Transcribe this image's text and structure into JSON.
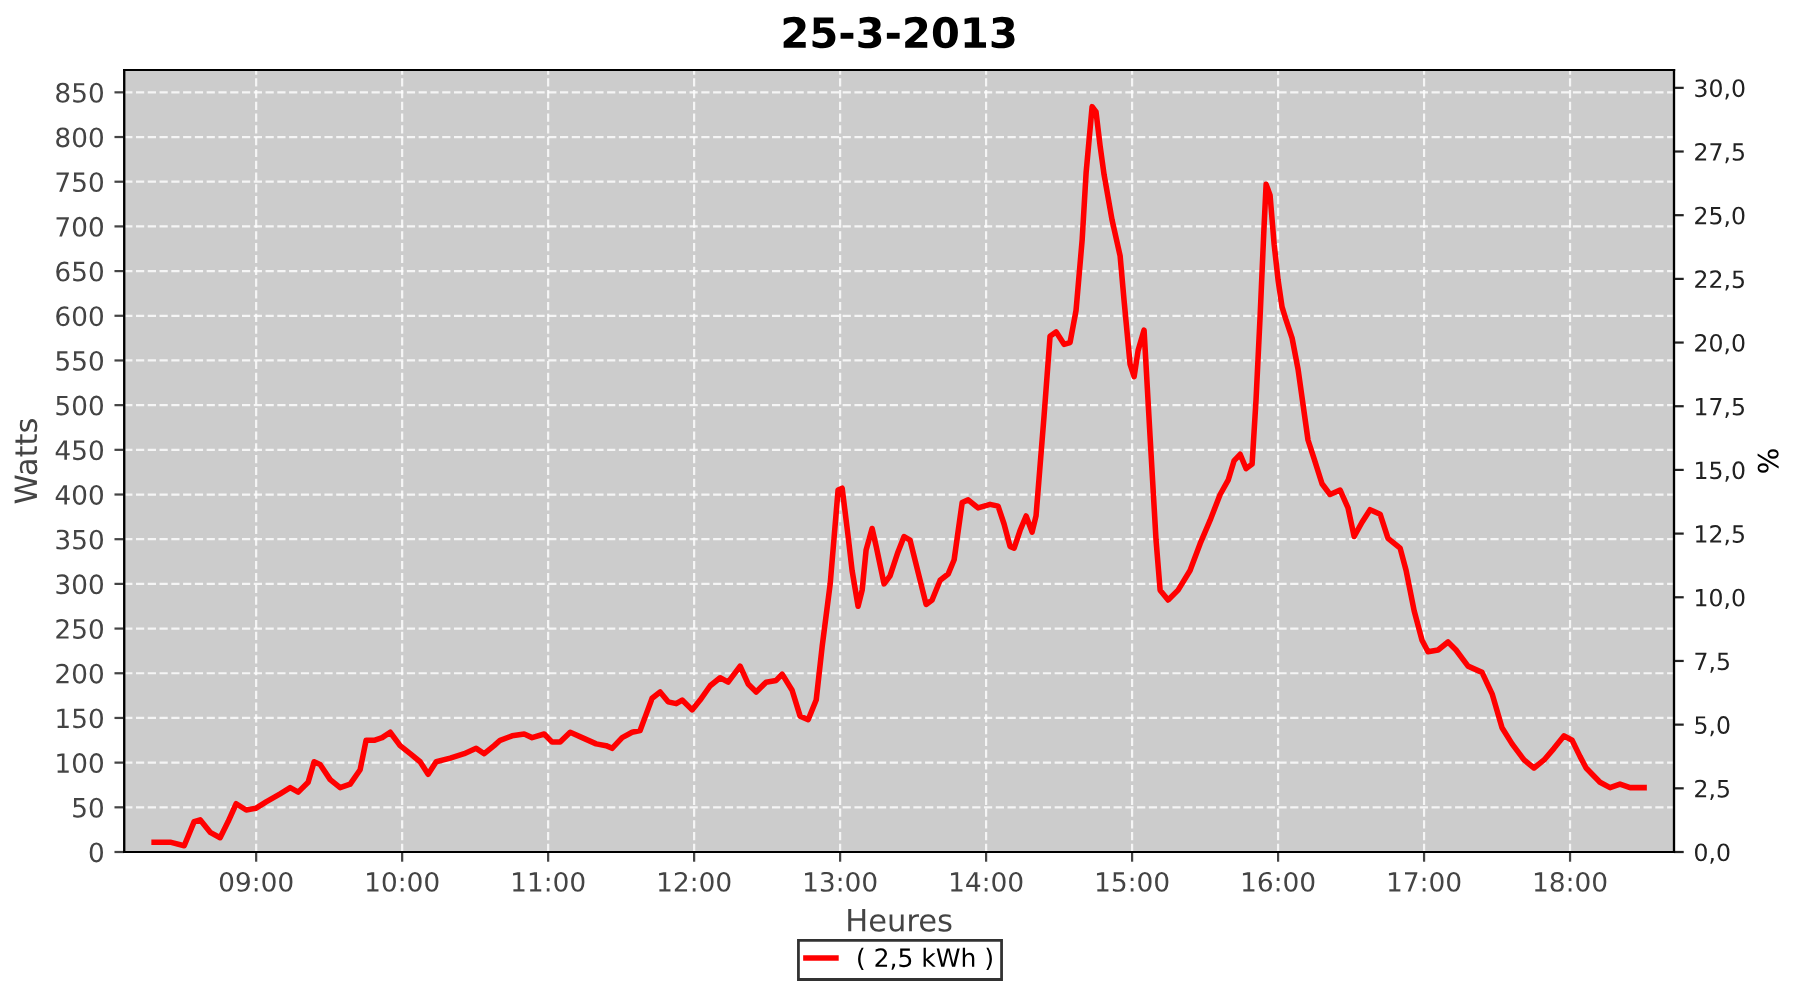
{
  "chart_data": {
    "type": "line",
    "title": "25-3-2013",
    "xlabel": "Heures",
    "ylabel": "Watts",
    "y2label": "%",
    "xlim": [
      8.096,
      18.712
    ],
    "ylim": [
      0,
      875
    ],
    "y2lim": [
      0,
      30.7
    ],
    "xticks": [
      {
        "value": 9,
        "label": "09:00"
      },
      {
        "value": 10,
        "label": "10:00"
      },
      {
        "value": 11,
        "label": "11:00"
      },
      {
        "value": 12,
        "label": "12:00"
      },
      {
        "value": 13,
        "label": "13:00"
      },
      {
        "value": 14,
        "label": "14:00"
      },
      {
        "value": 15,
        "label": "15:00"
      },
      {
        "value": 16,
        "label": "16:00"
      },
      {
        "value": 17,
        "label": "17:00"
      },
      {
        "value": 18,
        "label": "18:00"
      }
    ],
    "yticks": [
      0,
      50,
      100,
      150,
      200,
      250,
      300,
      350,
      400,
      450,
      500,
      550,
      600,
      650,
      700,
      750,
      800,
      850
    ],
    "y2ticks": [
      {
        "value": 0,
        "label": "0,0"
      },
      {
        "value": 2.5,
        "label": "2,5"
      },
      {
        "value": 5,
        "label": "5,0"
      },
      {
        "value": 7.5,
        "label": "7,5"
      },
      {
        "value": 10,
        "label": "10,0"
      },
      {
        "value": 12.5,
        "label": "12,5"
      },
      {
        "value": 15,
        "label": "15,0"
      },
      {
        "value": 17.5,
        "label": "17,5"
      },
      {
        "value": 20,
        "label": "20,0"
      },
      {
        "value": 22.5,
        "label": "22,5"
      },
      {
        "value": 25,
        "label": "25,0"
      },
      {
        "value": 27.5,
        "label": "27,5"
      },
      {
        "value": 30,
        "label": "30,0"
      }
    ],
    "grid": true,
    "legend": "bottom",
    "marker": "none",
    "line_style": "solid",
    "series": [
      {
        "name": "( 2,5 kWh )",
        "color": "#ff0000",
        "x": [
          8.301,
          8.411,
          8.507,
          8.575,
          8.616,
          8.685,
          8.753,
          8.808,
          8.863,
          8.932,
          9.0,
          9.068,
          9.164,
          9.233,
          9.288,
          9.356,
          9.397,
          9.438,
          9.507,
          9.575,
          9.644,
          9.712,
          9.753,
          9.808,
          9.863,
          9.918,
          9.986,
          10.055,
          10.123,
          10.178,
          10.233,
          10.329,
          10.425,
          10.507,
          10.562,
          10.63,
          10.671,
          10.753,
          10.836,
          10.89,
          10.973,
          11.027,
          11.082,
          11.151,
          11.233,
          11.329,
          11.397,
          11.438,
          11.507,
          11.575,
          11.63,
          11.671,
          11.712,
          11.767,
          11.822,
          11.877,
          11.918,
          11.986,
          12.041,
          12.11,
          12.178,
          12.233,
          12.315,
          12.37,
          12.425,
          12.493,
          12.562,
          12.603,
          12.671,
          12.726,
          12.781,
          12.836,
          12.877,
          12.932,
          12.986,
          13.014,
          13.055,
          13.082,
          13.123,
          13.151,
          13.178,
          13.219,
          13.247,
          13.301,
          13.342,
          13.397,
          13.438,
          13.479,
          13.548,
          13.589,
          13.63,
          13.685,
          13.74,
          13.781,
          13.836,
          13.877,
          13.945,
          14.027,
          14.082,
          14.123,
          14.164,
          14.192,
          14.233,
          14.274,
          14.315,
          14.342,
          14.397,
          14.438,
          14.479,
          14.534,
          14.575,
          14.616,
          14.658,
          14.685,
          14.726,
          14.753,
          14.781,
          14.808,
          14.863,
          14.918,
          14.945,
          14.986,
          15.014,
          15.041,
          15.082,
          15.123,
          15.164,
          15.192,
          15.247,
          15.315,
          15.397,
          15.466,
          15.534,
          15.603,
          15.658,
          15.699,
          15.74,
          15.781,
          15.822,
          15.849,
          15.877,
          15.904,
          15.918,
          15.945,
          15.973,
          16.0,
          16.027,
          16.055,
          16.096,
          16.137,
          16.205,
          16.247,
          16.301,
          16.356,
          16.425,
          16.479,
          16.521,
          16.575,
          16.63,
          16.699,
          16.753,
          16.836,
          16.877,
          16.932,
          16.986,
          17.027,
          17.096,
          17.164,
          17.219,
          17.301,
          17.397,
          17.466,
          17.534,
          17.603,
          17.685,
          17.753,
          17.822,
          17.89,
          17.959,
          18.014,
          18.068,
          18.11,
          18.205,
          18.274,
          18.342,
          18.411,
          18.507
        ],
        "values": [
          11,
          11,
          7,
          34,
          36,
          22,
          16,
          34,
          54,
          47,
          49,
          56,
          65,
          72,
          67,
          78,
          101,
          98,
          81,
          72,
          76,
          92,
          125,
          125,
          128,
          134,
          119,
          110,
          101,
          87,
          101,
          105,
          110,
          116,
          110,
          119,
          125,
          130,
          132,
          128,
          132,
          123,
          123,
          134,
          128,
          121,
          119,
          116,
          128,
          134,
          136,
          154,
          172,
          179,
          168,
          166,
          170,
          159,
          170,
          186,
          195,
          190,
          208,
          188,
          179,
          190,
          192,
          199,
          181,
          152,
          148,
          170,
          230,
          300,
          405,
          407,
          353,
          315,
          275,
          293,
          338,
          362,
          342,
          300,
          309,
          336,
          353,
          349,
          304,
          277,
          282,
          304,
          311,
          327,
          391,
          394,
          385,
          389,
          387,
          367,
          342,
          340,
          360,
          376,
          358,
          376,
          488,
          577,
          582,
          568,
          570,
          606,
          685,
          760,
          834,
          828,
          790,
          758,
          707,
          667,
          617,
          546,
          532,
          561,
          584,
          465,
          349,
          293,
          282,
          293,
          315,
          345,
          371,
          400,
          416,
          438,
          445,
          429,
          434,
          506,
          600,
          700,
          747,
          735,
          680,
          640,
          610,
          595,
          575,
          540,
          461,
          440,
          412,
          400,
          405,
          385,
          353,
          369,
          383,
          378,
          351,
          340,
          315,
          270,
          237,
          224,
          226,
          235,
          226,
          208,
          201,
          177,
          139,
          121,
          103,
          94,
          103,
          116,
          130,
          125,
          107,
          94,
          78,
          72,
          76,
          72,
          72
        ]
      }
    ]
  }
}
